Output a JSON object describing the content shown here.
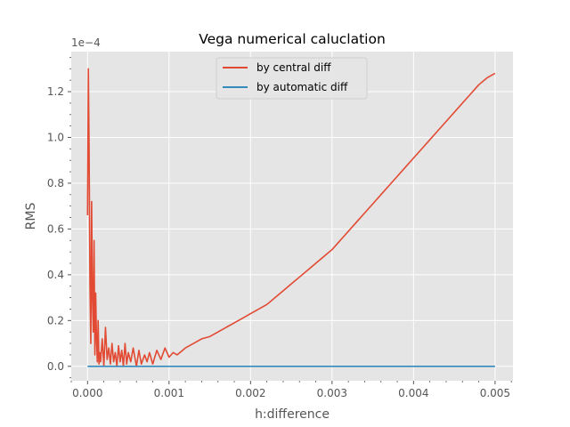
{
  "chart_data": {
    "type": "line",
    "title": "Vega numerical caluclation",
    "xlabel": "h:difference",
    "ylabel": "RMS",
    "y_offset_label": "1e−4",
    "xlim": [
      -0.0002,
      0.00522
    ],
    "ylim": [
      -0.063,
      1.375
    ],
    "x_ticks": [
      0.0,
      0.001,
      0.002,
      0.003,
      0.004,
      0.005
    ],
    "x_tick_labels": [
      "0.000",
      "0.001",
      "0.002",
      "0.003",
      "0.004",
      "0.005"
    ],
    "y_ticks": [
      0.0,
      0.2,
      0.4,
      0.6,
      0.8,
      1.0,
      1.2
    ],
    "y_tick_labels": [
      "0.0",
      "0.2",
      "0.4",
      "0.6",
      "0.8",
      "1.0",
      "1.2"
    ],
    "grid": true,
    "legend": {
      "position": "top-center",
      "entries": [
        {
          "label": "by central diff",
          "color": "#E24A33"
        },
        {
          "label": "by automatic diff",
          "color": "#348ABD"
        }
      ]
    },
    "series": [
      {
        "name": "by central diff",
        "color": "#E24A33",
        "x": [
          0.0,
          1e-05,
          2e-05,
          3e-05,
          4e-05,
          5e-05,
          6e-05,
          7e-05,
          8e-05,
          9e-05,
          0.0001,
          0.00011,
          0.00012,
          0.00013,
          0.00014,
          0.00015,
          0.00016,
          0.00018,
          0.0002,
          0.00022,
          0.00024,
          0.00026,
          0.00028,
          0.0003,
          0.00032,
          0.00034,
          0.00036,
          0.00038,
          0.0004,
          0.00042,
          0.00044,
          0.00046,
          0.00048,
          0.0005,
          0.00053,
          0.00056,
          0.0006,
          0.00063,
          0.00066,
          0.0007,
          0.00073,
          0.00076,
          0.0008,
          0.00085,
          0.0009,
          0.00095,
          0.001,
          0.00105,
          0.0011,
          0.0012,
          0.0013,
          0.0014,
          0.0015,
          0.0016,
          0.0017,
          0.0018,
          0.0019,
          0.002,
          0.0021,
          0.0022,
          0.0023,
          0.0024,
          0.0025,
          0.0026,
          0.0027,
          0.0028,
          0.0029,
          0.003,
          0.0031,
          0.0032,
          0.0033,
          0.0034,
          0.0035,
          0.0036,
          0.0037,
          0.0038,
          0.0039,
          0.004,
          0.0041,
          0.0042,
          0.0043,
          0.0044,
          0.0045,
          0.0046,
          0.0047,
          0.0048,
          0.0049,
          0.005
        ],
        "values": [
          0.66,
          1.3,
          0.9,
          0.35,
          0.1,
          0.72,
          0.3,
          0.15,
          0.55,
          0.05,
          0.32,
          0.12,
          0.02,
          0.2,
          0.01,
          0.06,
          0.02,
          0.12,
          0.0,
          0.17,
          0.03,
          0.08,
          0.01,
          0.1,
          0.02,
          0.06,
          0.0,
          0.09,
          0.02,
          0.07,
          0.0,
          0.1,
          0.01,
          0.06,
          0.02,
          0.08,
          0.0,
          0.07,
          0.01,
          0.05,
          0.02,
          0.06,
          0.01,
          0.07,
          0.03,
          0.08,
          0.04,
          0.06,
          0.05,
          0.08,
          0.1,
          0.12,
          0.13,
          0.15,
          0.17,
          0.19,
          0.21,
          0.23,
          0.25,
          0.27,
          0.3,
          0.33,
          0.36,
          0.39,
          0.42,
          0.45,
          0.48,
          0.51,
          0.55,
          0.59,
          0.63,
          0.67,
          0.71,
          0.75,
          0.79,
          0.83,
          0.87,
          0.91,
          0.95,
          0.99,
          1.03,
          1.07,
          1.11,
          1.15,
          1.19,
          1.23,
          1.26,
          1.28
        ]
      },
      {
        "name": "by automatic diff",
        "color": "#348ABD",
        "x": [
          0.0,
          0.005
        ],
        "values": [
          0.0,
          0.0
        ]
      }
    ]
  }
}
